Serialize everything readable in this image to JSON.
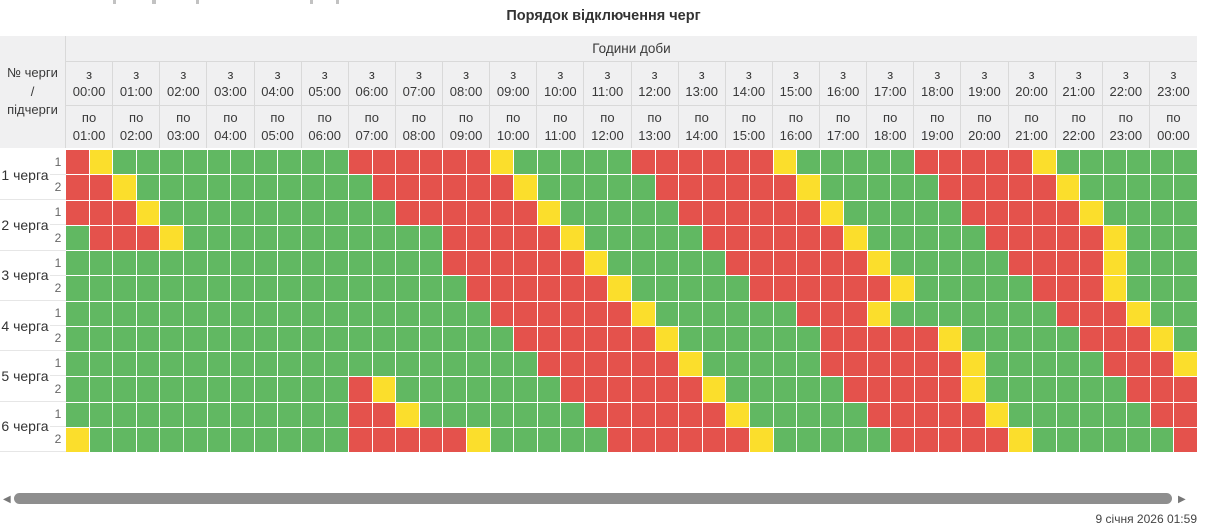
{
  "title": "Порядок відключення черг",
  "table": {
    "corner_label": "№ черги / підчерги",
    "hours_header": "Години доби",
    "columns": [
      {
        "from": "з 00:00",
        "to": "по 01:00"
      },
      {
        "from": "з 01:00",
        "to": "по 02:00"
      },
      {
        "from": "з 02:00",
        "to": "по 03:00"
      },
      {
        "from": "з 03:00",
        "to": "по 04:00"
      },
      {
        "from": "з 04:00",
        "to": "по 05:00"
      },
      {
        "from": "з 05:00",
        "to": "по 06:00"
      },
      {
        "from": "з 06:00",
        "to": "по 07:00"
      },
      {
        "from": "з 07:00",
        "to": "по 08:00"
      },
      {
        "from": "з 08:00",
        "to": "по 09:00"
      },
      {
        "from": "з 09:00",
        "to": "по 10:00"
      },
      {
        "from": "з 10:00",
        "to": "по 11:00"
      },
      {
        "from": "з 11:00",
        "to": "по 12:00"
      },
      {
        "from": "з 12:00",
        "to": "по 13:00"
      },
      {
        "from": "з 13:00",
        "to": "по 14:00"
      },
      {
        "from": "з 14:00",
        "to": "по 15:00"
      },
      {
        "from": "з 15:00",
        "to": "по 16:00"
      },
      {
        "from": "з 16:00",
        "to": "по 17:00"
      },
      {
        "from": "з 17:00",
        "to": "по 18:00"
      },
      {
        "from": "з 18:00",
        "to": "по 19:00"
      },
      {
        "from": "з 19:00",
        "to": "по 20:00"
      },
      {
        "from": "з 20:00",
        "to": "по 21:00"
      },
      {
        "from": "з 21:00",
        "to": "по 22:00"
      },
      {
        "from": "з 22:00",
        "to": "по 23:00"
      },
      {
        "from": "з 23:00",
        "to": "по 00:00"
      }
    ],
    "slots_per_hour": 2,
    "queues": [
      {
        "name": "1 черга",
        "rows": [
          {
            "sub": "1",
            "slots": "RYGGGGGGGGGGRRRRRRYGGGGGRRRRRRYGGGGGRRRRRYGGGGGG"
          },
          {
            "sub": "2",
            "slots": "RRYGGGGGGGGGGRRRRRRYGGGGGRRRRRRYGGGGGRRRRRYGGGGG"
          }
        ]
      },
      {
        "name": "2 черга",
        "rows": [
          {
            "sub": "1",
            "slots": "RRRYGGGGGGGGGGRRRRRRYGGGGGRRRRRRYGGGGGRRRRRYGGGG"
          },
          {
            "sub": "2",
            "slots": "GRRRYGGGGGGGGGGGRRRRRYGGGGGRRRRRRYGGGGGRRRRRYGGG"
          }
        ]
      },
      {
        "name": "3 черга",
        "rows": [
          {
            "sub": "1",
            "slots": "GGGGGGGGGGGGGGGGRRRRRRYGGGGGRRRRRRYGGGGGRRRRYGGG"
          },
          {
            "sub": "2",
            "slots": "GGGGGGGGGGGGGGGGGRRRRRRYGGGGGRRRRRRYGGGGGRRRYGGG"
          }
        ]
      },
      {
        "name": "4 черга",
        "rows": [
          {
            "sub": "1",
            "slots": "GGGGGGGGGGGGGGGGGGRRRRRRYGGGGGGRRRYGGGGGGGRRRYGG"
          },
          {
            "sub": "2",
            "slots": "GGGGGGGGGGGGGGGGGGGRRRRRRYGGGGGGRRRRRYGGGGGRRRYG"
          }
        ]
      },
      {
        "name": "5 черга",
        "rows": [
          {
            "sub": "1",
            "slots": "GGGGGGGGGGGGGGGGGGGGRRRRRRYGGGGGRRRRRRYGGGGGRRRY"
          },
          {
            "sub": "2",
            "slots": "GGGGGGGGGGGGRYGGGGGGGRRRRRRYGGGGGRRRRRYGGGGGGRRR"
          }
        ]
      },
      {
        "name": "6 черга",
        "rows": [
          {
            "sub": "1",
            "slots": "GGGGGGGGGGGGRRYGGGGGGGRRRRRRYGGGGGRRRRRYGGGGGGRR"
          },
          {
            "sub": "2",
            "slots": "YGGGGGGGGGGGRRRRRYGGGGGRRRRRRYGGGGGRRRRRYGGGGGGR"
          }
        ]
      }
    ]
  },
  "colors": {
    "G": "#61b862",
    "R": "#e4524c",
    "Y": "#fbde2c"
  },
  "footer": {
    "timestamp": "9 січня 2026 01:59"
  },
  "scrollbar": {
    "left_arrow": "◀",
    "right_arrow": "▶"
  }
}
